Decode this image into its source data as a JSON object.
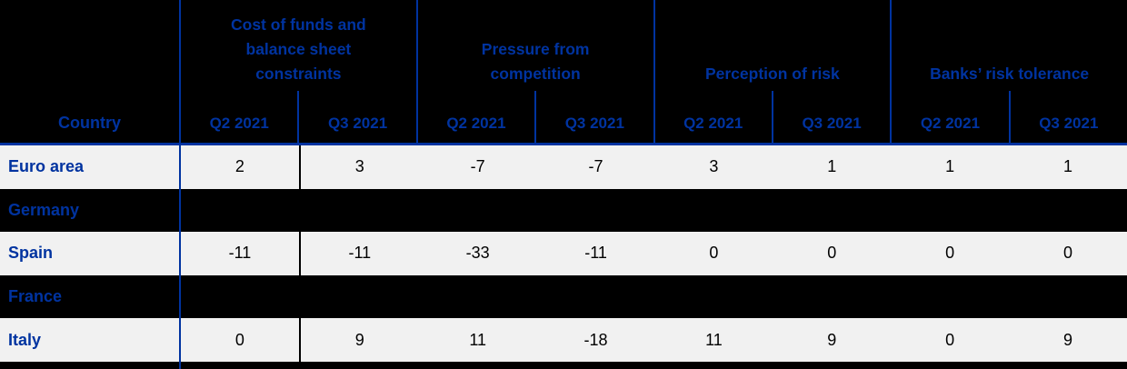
{
  "table": {
    "country_header": "Country",
    "groups": [
      {
        "title": "Cost of funds and balance sheet constraints",
        "subcols": [
          "Q2 2021",
          "Q3 2021"
        ]
      },
      {
        "title": "Pressure from competition",
        "subcols": [
          "Q2 2021",
          "Q3 2021"
        ]
      },
      {
        "title": "Perception of risk",
        "subcols": [
          "Q2 2021",
          "Q3 2021"
        ]
      },
      {
        "title": "Banks’ risk tolerance",
        "subcols": [
          "Q2 2021",
          "Q3 2021"
        ]
      }
    ],
    "rows": [
      {
        "country": "Euro area",
        "blacked_out": false,
        "values": [
          "2",
          "3",
          "-7",
          "-7",
          "3",
          "1",
          "1",
          "1"
        ]
      },
      {
        "country": "Germany",
        "blacked_out": true,
        "values": []
      },
      {
        "country": "Spain",
        "blacked_out": false,
        "values": [
          "-11",
          "-11",
          "-33",
          "-11",
          "0",
          "0",
          "0",
          "0"
        ]
      },
      {
        "country": "France",
        "blacked_out": true,
        "values": []
      },
      {
        "country": "Italy",
        "blacked_out": false,
        "values": [
          "0",
          "9",
          "11",
          "-18",
          "11",
          "9",
          "0",
          "9"
        ]
      }
    ]
  },
  "colors": {
    "accent_blue": "#0033A0",
    "row_light": "#F1F1F1",
    "row_dark": "#000000",
    "number_text": "#000000",
    "header_background": "#000000"
  },
  "chart_data": {
    "type": "table",
    "column_groups": [
      "Cost of funds and balance sheet constraints",
      "Pressure from competition",
      "Perception of risk",
      "Banks’ risk tolerance"
    ],
    "periods_per_group": [
      "Q2 2021",
      "Q3 2021"
    ],
    "row_header": "Country",
    "rows": [
      {
        "country": "Euro area",
        "values": [
          2,
          3,
          -7,
          -7,
          3,
          1,
          1,
          1
        ]
      },
      {
        "country": "Germany",
        "values": null,
        "note": "row blacked out"
      },
      {
        "country": "Spain",
        "values": [
          -11,
          -11,
          -33,
          -11,
          0,
          0,
          0,
          0
        ]
      },
      {
        "country": "France",
        "values": null,
        "note": "row blacked out"
      },
      {
        "country": "Italy",
        "values": [
          0,
          9,
          11,
          -18,
          11,
          9,
          0,
          9
        ]
      }
    ]
  }
}
